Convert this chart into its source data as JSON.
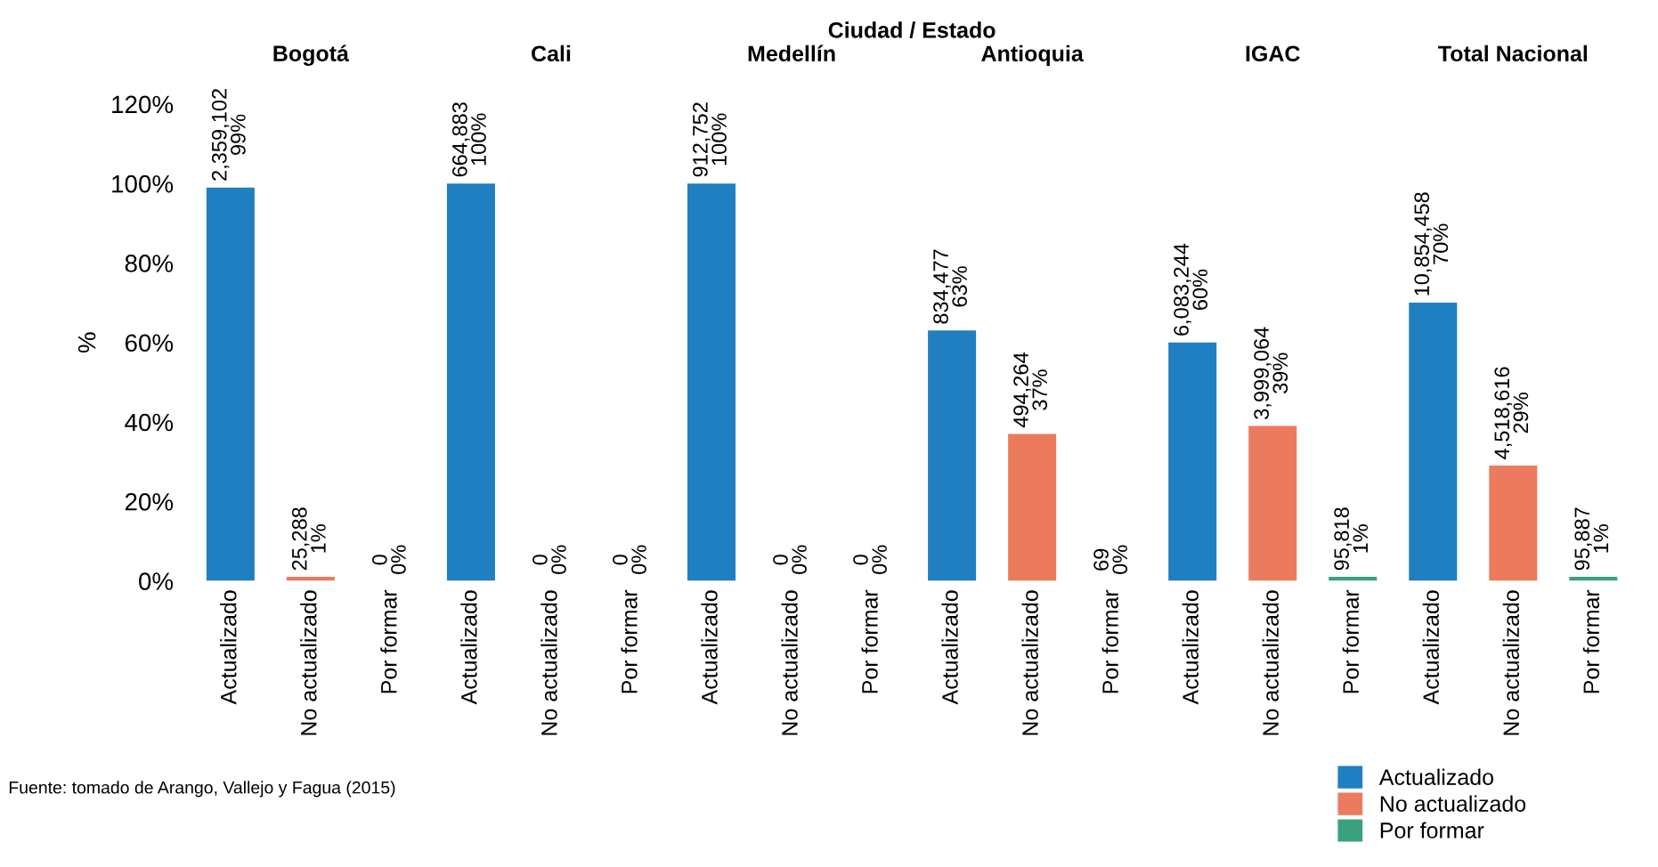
{
  "chart_data": {
    "type": "bar",
    "title": "Ciudad / Estado",
    "ylabel": "%",
    "categories": [
      "Actualizado",
      "No actualizado",
      "Por formar",
      "Actualizado",
      "No actualizado",
      "Por formar",
      "Actualizado",
      "No actualizado",
      "Por formar",
      "Actualizado",
      "No actualizado",
      "Por formar",
      "Actualizado",
      "No actualizado",
      "Por formar",
      "Actualizado",
      "No actualizado",
      "Por formar"
    ],
    "series": [
      {
        "name": "Actualizado",
        "color": "#1f7fc0",
        "values": [
          99,
          null,
          null,
          100,
          null,
          null,
          100,
          null,
          null,
          63,
          null,
          null,
          60,
          null,
          null,
          70,
          null,
          null
        ],
        "value_labels": [
          "2,359,102\n99%",
          null,
          null,
          "664,883\n100%",
          null,
          null,
          "912,752\n100%",
          null,
          null,
          "834,477\n63%",
          null,
          null,
          "6,083,244\n60%",
          null,
          null,
          "10,854,458\n70%",
          null,
          null
        ]
      },
      {
        "name": "No actualizado",
        "color": "#ec7b5e",
        "values": [
          null,
          1,
          null,
          null,
          0,
          null,
          null,
          0,
          null,
          null,
          37,
          null,
          null,
          39,
          null,
          null,
          29,
          null
        ],
        "value_labels": [
          null,
          "25,288\n1%",
          null,
          null,
          "0\n0%",
          null,
          null,
          "0\n0%",
          null,
          null,
          "494,264\n37%",
          null,
          null,
          "3,999,064\n39%",
          null,
          null,
          "4,518,616\n29%",
          null
        ]
      },
      {
        "name": "Por formar",
        "color": "#3aa17e",
        "values": [
          null,
          null,
          0,
          null,
          null,
          0,
          null,
          null,
          0,
          null,
          null,
          0,
          null,
          null,
          1,
          null,
          null,
          1
        ],
        "value_labels": [
          null,
          null,
          "0\n0%",
          null,
          null,
          "0\n0%",
          null,
          null,
          "0\n0%",
          null,
          null,
          "69\n0%",
          null,
          null,
          "95,818\n1%",
          null,
          null,
          "95,887\n1%"
        ]
      }
    ],
    "ylim": [
      0,
      120
    ],
    "yticks": [
      {
        "value": 0,
        "label": "0%"
      },
      {
        "value": 20,
        "label": "20%"
      },
      {
        "value": 40,
        "label": "40%"
      },
      {
        "value": 60,
        "label": "60%"
      },
      {
        "value": 80,
        "label": "80%"
      },
      {
        "value": 100,
        "label": "100%"
      },
      {
        "value": 120,
        "label": "120%"
      }
    ],
    "legend": "bottom right",
    "annotations": [
      "Bogotá",
      "Cali",
      "Medellín",
      "Antioquia",
      "IGAC",
      "Total Nacional",
      "Fuente: tomado de Arango, Vallejo y Fagua (2015)"
    ]
  }
}
